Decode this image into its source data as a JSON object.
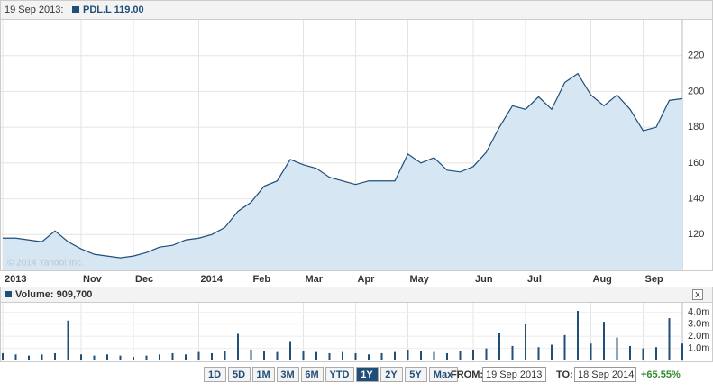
{
  "header": {
    "date": "19 Sep 2013:",
    "quote": "PDL.L 119.00"
  },
  "chart_data": [
    {
      "type": "area",
      "color": "#1f4e79",
      "fill": "#d6e6f3",
      "categories": [
        "2013",
        null,
        null,
        null,
        null,
        null,
        "Nov",
        null,
        null,
        null,
        "Dec",
        null,
        null,
        null,
        null,
        "2014",
        null,
        null,
        null,
        "Feb",
        null,
        null,
        null,
        "Mar",
        null,
        null,
        null,
        "Apr",
        null,
        null,
        null,
        "May",
        null,
        null,
        null,
        null,
        "Jun",
        null,
        null,
        null,
        "Jul",
        null,
        null,
        null,
        null,
        "Aug",
        null,
        null,
        null,
        "Sep",
        null,
        null,
        null
      ],
      "values": [
        118,
        118,
        117,
        116,
        122,
        116,
        112,
        109,
        108,
        107,
        108,
        110,
        113,
        114,
        117,
        118,
        120,
        124,
        133,
        138,
        147,
        150,
        162,
        159,
        157,
        152,
        150,
        148,
        150,
        150,
        150,
        165,
        160,
        163,
        156,
        155,
        158,
        166,
        180,
        192,
        190,
        197,
        190,
        205,
        210,
        198,
        192,
        198,
        190,
        178,
        180,
        195,
        196
      ],
      "ylim": [
        100,
        240
      ],
      "yticks": [
        120,
        140,
        160,
        180,
        200,
        220
      ],
      "grid": true
    },
    {
      "type": "bar",
      "color": "#1f4e79",
      "label": "Volume: 909,700",
      "values": [
        0.6,
        0.5,
        0.4,
        0.5,
        0.6,
        3.3,
        0.5,
        0.4,
        0.5,
        0.4,
        0.3,
        0.4,
        0.5,
        0.6,
        0.5,
        0.7,
        0.6,
        0.8,
        2.2,
        0.9,
        0.8,
        0.7,
        1.6,
        0.8,
        0.7,
        0.6,
        0.7,
        0.6,
        0.5,
        0.6,
        0.7,
        0.9,
        0.8,
        0.7,
        0.6,
        0.8,
        0.9,
        1.0,
        2.3,
        1.2,
        3.0,
        1.1,
        1.3,
        2.1,
        4.1,
        1.4,
        3.2,
        1.9,
        1.2,
        1.0,
        1.1,
        3.5,
        1.4
      ],
      "ylim": [
        0,
        4.7
      ],
      "yticks": [
        {
          "value": 1,
          "label": "1.0m"
        },
        {
          "value": 2,
          "label": "2.0m"
        },
        {
          "value": 3,
          "label": "3.0m"
        },
        {
          "value": 4,
          "label": "4.0m"
        }
      ]
    }
  ],
  "copyright": "© 2014 Yahoo! Inc.",
  "close": "x",
  "range_buttons": [
    "1D",
    "5D",
    "1M",
    "3M",
    "6M",
    "YTD",
    "1Y",
    "2Y",
    "5Y",
    "Max"
  ],
  "active_button": "1Y",
  "from_label": "FROM:",
  "from_value": "19 Sep 2013",
  "to_label": "TO:",
  "to_value": "18 Sep 2014",
  "change": "+65.55%"
}
